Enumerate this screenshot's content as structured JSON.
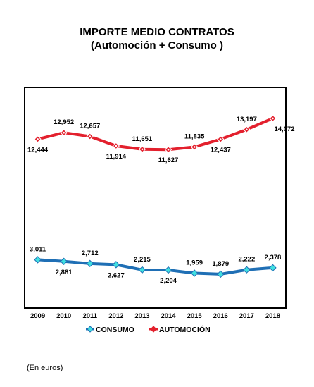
{
  "chart_data": {
    "type": "line",
    "title": "IMPORTE MEDIO CONTRATOS",
    "subtitle": "(Automoción + Consumo )",
    "categories": [
      "2009",
      "2010",
      "2011",
      "2012",
      "2013",
      "2014",
      "2015",
      "2016",
      "2017",
      "2018"
    ],
    "ylim": [
      0,
      15500
    ],
    "grid": false,
    "legend_position": "bottom",
    "series": [
      {
        "name": "CONSUMO",
        "color": "#1f6fb5",
        "marker_color": "#40e0e0",
        "values": [
          3011,
          2881,
          2712,
          2627,
          2215,
          2204,
          1959,
          1879,
          2222,
          2378
        ],
        "labels": [
          "3,011",
          "2,881",
          "2,712",
          "2,627",
          "2,215",
          "2,204",
          "1,959",
          "1,879",
          "2,222",
          "2,378"
        ]
      },
      {
        "name": "AUTOMOCIÓN",
        "color": "#e3202d",
        "marker_color": "#e3202d",
        "values": [
          12444,
          12952,
          12657,
          11914,
          11651,
          11627,
          11835,
          12437,
          13197,
          14072
        ],
        "labels": [
          "12,444",
          "12,952",
          "12,657",
          "11,914",
          "11,651",
          "11,627",
          "11,835",
          "12,437",
          "13,197",
          "14,072"
        ]
      }
    ]
  },
  "footnote": "(En euros)"
}
